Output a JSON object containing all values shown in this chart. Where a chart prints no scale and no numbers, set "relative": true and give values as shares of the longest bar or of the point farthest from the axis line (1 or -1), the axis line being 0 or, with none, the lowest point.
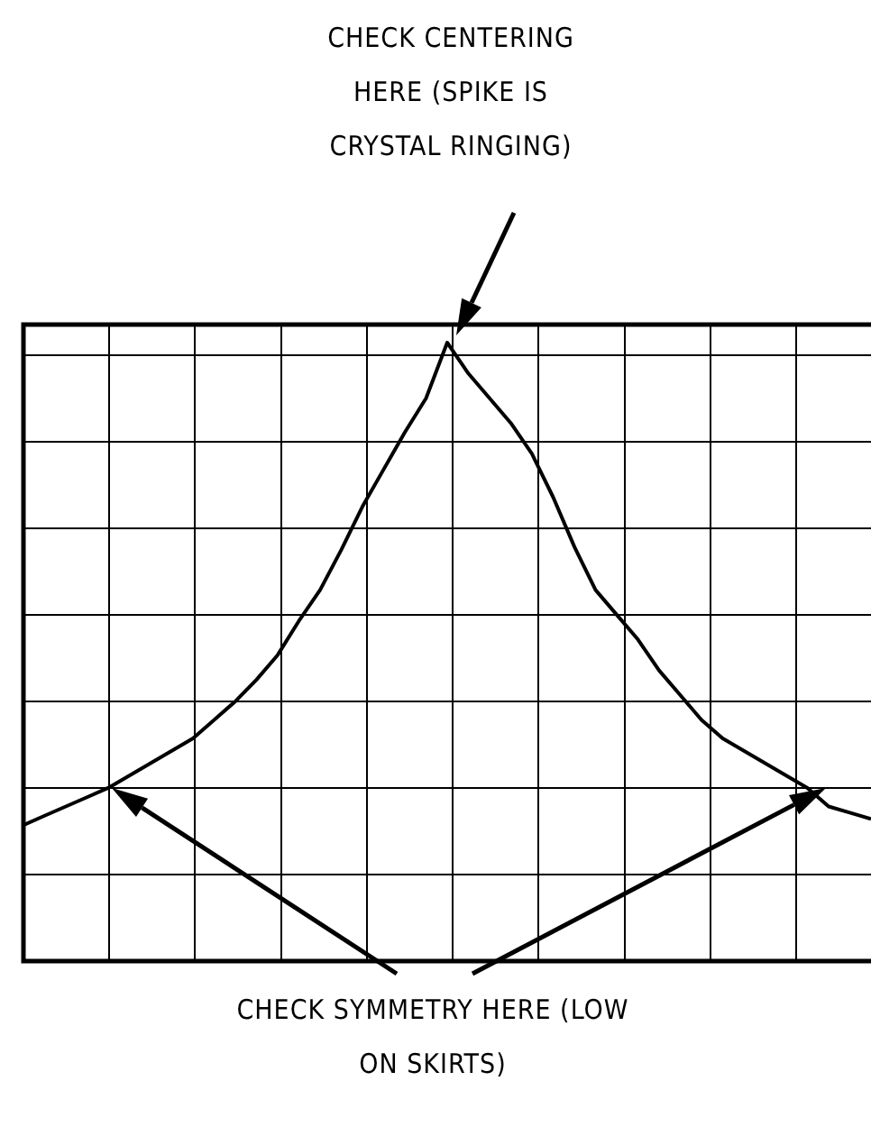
{
  "chart_data": {
    "type": "line",
    "relative": true,
    "grid": true,
    "legend": false,
    "marker": "none",
    "line_style": "solid",
    "categories": [
      null,
      null,
      null,
      null,
      null,
      null,
      null,
      null,
      null,
      null,
      null,
      null,
      null,
      null,
      null,
      null,
      null,
      null,
      null,
      null,
      null,
      null,
      null,
      null,
      null,
      null,
      null,
      null,
      null,
      null,
      null,
      null,
      null,
      null,
      null,
      null,
      null,
      null,
      null,
      null,
      null
    ],
    "series": [
      {
        "color": "#000000",
        "values": [
          0.22,
          0.235,
          0.25,
          0.265,
          0.28,
          0.3,
          0.32,
          0.34,
          0.36,
          0.39,
          0.42,
          0.455,
          0.495,
          0.55,
          0.6,
          0.665,
          0.735,
          0.795,
          0.855,
          0.91,
          1.0,
          0.95,
          0.91,
          0.87,
          0.82,
          0.75,
          0.67,
          0.6,
          0.56,
          0.52,
          0.47,
          0.43,
          0.39,
          0.36,
          0.34,
          0.32,
          0.3,
          0.28,
          0.25,
          0.24,
          0.23
        ]
      }
    ],
    "annotations": [
      "CHECK CENTERING HERE (SPIKE IS CRYSTAL RINGING)",
      "CHECK SYMMETRY HERE (LOW ON SKIRTS)"
    ]
  }
}
